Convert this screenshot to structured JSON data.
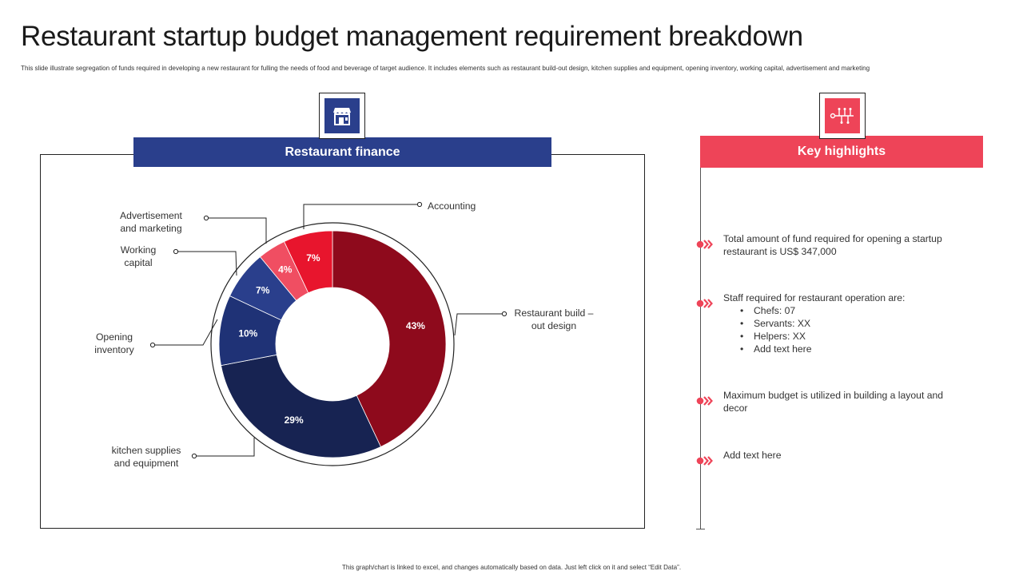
{
  "page": {
    "title": "Restaurant startup budget management requirement breakdown",
    "subtitle": "This slide illustrate segregation of funds required in developing a new restaurant for fulling the needs of food and beverage of target audience. It includes elements such as restaurant build-out design, kitchen supplies and equipment, opening inventory, working capital, advertisement and marketing",
    "footer": "This graph/chart is linked to excel, and changes automatically based on data. Just left click on it and select “Edit Data”."
  },
  "finance": {
    "header": "Restaurant finance",
    "icon": "restaurant-storefront-icon"
  },
  "highlights": {
    "header": "Key highlights",
    "icon": "circuit-network-icon",
    "items": [
      {
        "text": "Total amount of fund required for opening a startup restaurant is US$ 347,000"
      },
      {
        "text": "Staff required for restaurant operation are:",
        "bullets": [
          "Chefs: 07",
          "Servants: XX",
          "Helpers: XX",
          "Add text here"
        ]
      },
      {
        "text": "Maximum budget is utilized in building a layout and decor"
      },
      {
        "text": "Add text here"
      }
    ]
  },
  "colors": {
    "blue_header": "#2a3f8c",
    "red_header": "#ee4458"
  },
  "chart_data": {
    "type": "pie",
    "variant": "donut",
    "slices": [
      {
        "label": "Restaurant build – out design",
        "value": 43,
        "display": "43%",
        "color": "#8e0a1c"
      },
      {
        "label": "kitchen supplies and equipment",
        "value": 29,
        "display": "29%",
        "color": "#172352"
      },
      {
        "label": "Opening inventory",
        "value": 10,
        "display": "10%",
        "color": "#1f3276"
      },
      {
        "label": "Working capital",
        "value": 7,
        "display": "7%",
        "color": "#2a3f8c"
      },
      {
        "label": "Advertisement and marketing",
        "value": 4,
        "display": "4%",
        "color": "#f04e62"
      },
      {
        "label": "Accounting",
        "value": 7,
        "display": "7%",
        "color": "#e8152d"
      }
    ],
    "legend": "callout labels",
    "grid": false
  }
}
